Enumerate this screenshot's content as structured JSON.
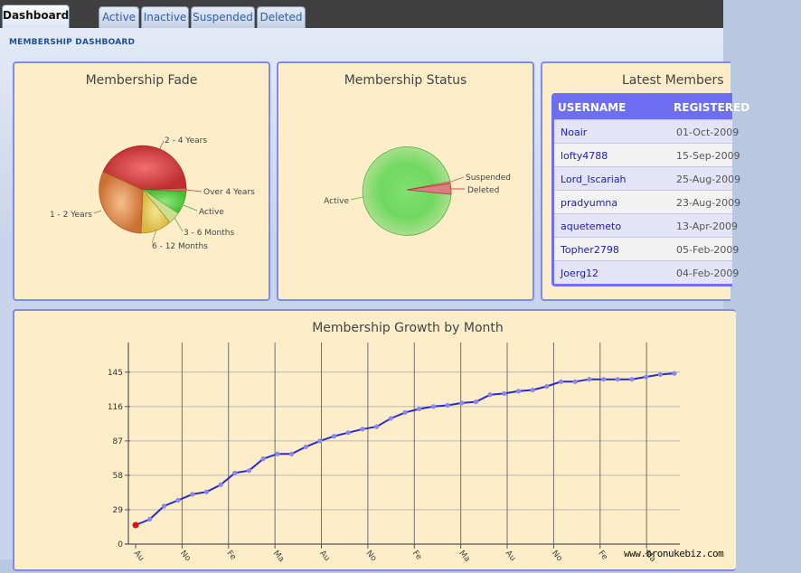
{
  "tabs": [
    {
      "label": "Dashboard",
      "active": true
    },
    {
      "label": "Active"
    },
    {
      "label": "Inactive"
    },
    {
      "label": "Suspended"
    },
    {
      "label": "Deleted"
    }
  ],
  "section_title": "MEMBERSHIP DASHBOARD",
  "watermark": "www.bronukebiz.com",
  "colors": {
    "panel_bg": "#fdedc9",
    "panel_border": "#7b8cf0",
    "line": "#2a2ad0",
    "points": "#8888f0",
    "first_point": "#dd1111"
  },
  "fade": {
    "title": "Membership Fade",
    "labels": [
      "2 - 4 Years",
      "Over 4 Years",
      "Active",
      "3 - 6 Months",
      "6 - 12 Months",
      "1 - 2 Years"
    ]
  },
  "status": {
    "title": "Membership Status",
    "labels": [
      "Suspended",
      "Deleted",
      "Active"
    ]
  },
  "latest": {
    "title": "Latest Members",
    "col_username": "USERNAME",
    "col_registered": "REGISTERED",
    "rows": [
      {
        "username": "Noair",
        "date": "01-Oct-2009"
      },
      {
        "username": "lofty4788",
        "date": "15-Sep-2009"
      },
      {
        "username": "Lord_Iscariah",
        "date": "25-Aug-2009"
      },
      {
        "username": "pradyumna",
        "date": "23-Aug-2009"
      },
      {
        "username": "aquetemeto",
        "date": "13-Apr-2009"
      },
      {
        "username": "Topher2798",
        "date": "05-Feb-2009"
      },
      {
        "username": "Joerg12",
        "date": "04-Feb-2009"
      }
    ]
  },
  "chart_data": [
    {
      "type": "pie",
      "title": "Membership Fade",
      "slices": [
        {
          "label": "2 - 4 Years",
          "value": 30
        },
        {
          "label": "Over 4 Years",
          "value": 0.5
        },
        {
          "label": "Active",
          "value": 10
        },
        {
          "label": "3 - 6 Months",
          "value": 3
        },
        {
          "label": "6 - 12 Months",
          "value": 12
        },
        {
          "label": "1 - 2 Years",
          "value": 44.5
        }
      ]
    },
    {
      "type": "pie",
      "title": "Membership Status",
      "slices": [
        {
          "label": "Suspended",
          "value": 1.2
        },
        {
          "label": "Deleted",
          "value": 6.8
        },
        {
          "label": "Active",
          "value": 92
        }
      ]
    },
    {
      "type": "line",
      "title": "Membership Growth by Month",
      "yticks": [
        0,
        29,
        58,
        87,
        116,
        145
      ],
      "ylim": [
        0,
        170
      ],
      "xtick_labels": [
        "Au",
        "No",
        "Fe",
        "Ma",
        "Au",
        "No",
        "Fe",
        "Ma",
        "Au",
        "No",
        "Fe",
        "Ma"
      ],
      "grid": true,
      "values": [
        16,
        21,
        32,
        37,
        42,
        44,
        50,
        60,
        62,
        72,
        76,
        76,
        82,
        87,
        91,
        94,
        97,
        99,
        106,
        111,
        114,
        116,
        117,
        119,
        120,
        126,
        127,
        129,
        130,
        133,
        137,
        137,
        139,
        139,
        139,
        139,
        141,
        143,
        144
      ]
    }
  ]
}
